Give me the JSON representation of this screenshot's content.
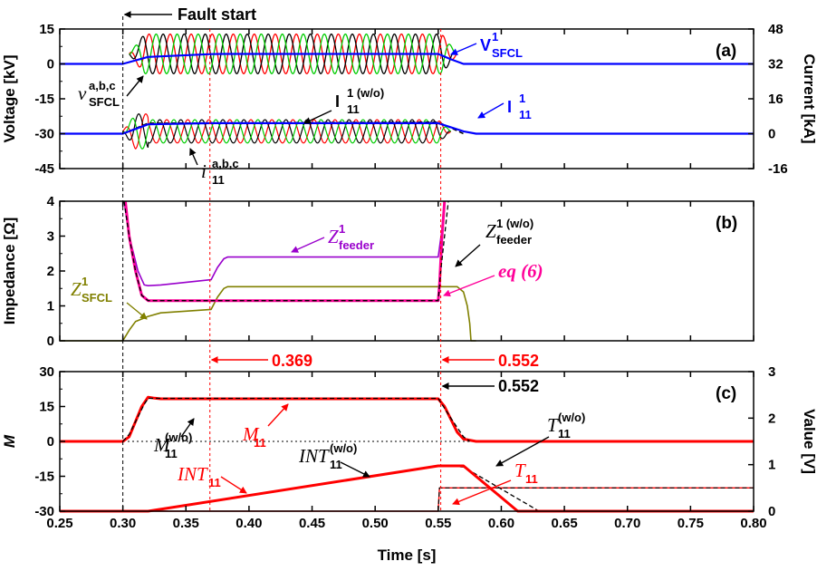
{
  "chart_data": [
    {
      "panel": "a",
      "type": "line",
      "label": "(a)",
      "ylabel_left": "Voltage [kV]",
      "ylabel_right": "Current [kA]",
      "xlim": [
        0.25,
        0.8
      ],
      "ylim_left": [
        -45,
        15
      ],
      "yticks_left": [
        "15",
        "0",
        "-15",
        "-30",
        "-45"
      ],
      "ylim_right": [
        -16,
        48
      ],
      "yticks_right": [
        "48",
        "32",
        "16",
        "0",
        "-16"
      ],
      "series": [
        {
          "name": "V1 SFCL",
          "color": "#0000ff",
          "x": [
            0.25,
            0.3,
            0.32,
            0.37,
            0.38,
            0.55,
            0.56,
            0.57,
            0.8
          ],
          "y": [
            0,
            0,
            3,
            4.2,
            4.3,
            4.3,
            2,
            0,
            0
          ]
        },
        {
          "name": "v a,b,c SFCL",
          "colors": [
            "#ff0000",
            "#000000",
            "#00cc00"
          ],
          "amplitude_kV": 8.5,
          "frequency_hz": 60,
          "t_start": 0.305,
          "t_end": 0.565
        },
        {
          "name": "I1 11",
          "color": "#0000ff",
          "x": [
            0.25,
            0.3,
            0.32,
            0.37,
            0.55,
            0.57,
            0.58,
            0.8
          ],
          "y": [
            -30,
            -30,
            -26,
            -25.5,
            -25.5,
            -29,
            -30,
            -30
          ]
        },
        {
          "name": "I1(w/o) 11",
          "color": "#000000",
          "dashed": true,
          "x": [
            0.3,
            0.32,
            0.55,
            0.57
          ],
          "y": [
            -30,
            -25.5,
            -25,
            -30
          ]
        },
        {
          "name": "i a,b,c 11",
          "colors": [
            "#ff0000",
            "#000000",
            "#00cc00"
          ],
          "center_kV": -30,
          "amplitude_kV": 5,
          "frequency_hz": 60,
          "t_start": 0.3,
          "t_end": 0.56
        }
      ],
      "annotations": [
        {
          "id": "fault",
          "text": "Fault start"
        },
        {
          "id": "v_sfcl",
          "main": "V",
          "sup": "1",
          "sub": "SFCL",
          "color": "#0000ff"
        },
        {
          "id": "v_abc",
          "main": "v",
          "sup": "a,b,c",
          "sub": "SFCL",
          "color": "#000000"
        },
        {
          "id": "i11",
          "main": "I",
          "sup": "1",
          "sub": "11",
          "color": "#0000ff"
        },
        {
          "id": "i11wo",
          "main": "I",
          "sup": "1 (w/o)",
          "sub": "11",
          "color": "#000000"
        },
        {
          "id": "i_abc",
          "main": "i",
          "sup": "a,b,c",
          "sub": "11",
          "color": "#000000"
        }
      ]
    },
    {
      "panel": "b",
      "type": "line",
      "label": "(b)",
      "ylabel": "Impedance [Ω]",
      "xlim": [
        0.25,
        0.8
      ],
      "ylim": [
        0,
        4
      ],
      "yticks": [
        "0",
        "1",
        "2",
        "3",
        "4"
      ],
      "series": [
        {
          "name": "Z1 feeder",
          "color": "#9900cc",
          "x": [
            0.301,
            0.305,
            0.312,
            0.317,
            0.32,
            0.33,
            0.37,
            0.375,
            0.38,
            0.383,
            0.55,
            0.553,
            0.555
          ],
          "y": [
            4.0,
            3.0,
            2.0,
            1.6,
            1.58,
            1.6,
            1.75,
            2.1,
            2.35,
            2.4,
            2.4,
            3.2,
            4.0
          ]
        },
        {
          "name": "Z1(w/o) feeder",
          "color": "#000000",
          "dashed": true,
          "x": [
            0.301,
            0.305,
            0.31,
            0.315,
            0.32,
            0.55,
            0.552,
            0.555,
            0.558
          ],
          "y": [
            4.0,
            3.0,
            2.0,
            1.3,
            1.15,
            1.15,
            2.0,
            3.0,
            4.0
          ]
        },
        {
          "name": "eq (6)",
          "color": "#ff0099",
          "x": [
            0.302,
            0.305,
            0.31,
            0.315,
            0.32,
            0.55,
            0.551,
            0.553,
            0.555
          ],
          "y": [
            4.0,
            3.0,
            2.0,
            1.3,
            1.15,
            1.15,
            1.6,
            3.0,
            4.0
          ]
        },
        {
          "name": "Z1 SFCL",
          "color": "#808000",
          "x": [
            0.25,
            0.3,
            0.305,
            0.31,
            0.32,
            0.33,
            0.37,
            0.375,
            0.38,
            0.383,
            0.55,
            0.56,
            0.565,
            0.57,
            0.573,
            0.575,
            0.576,
            0.58
          ],
          "y": [
            0,
            0,
            0.3,
            0.55,
            0.7,
            0.8,
            0.9,
            1.25,
            1.5,
            1.55,
            1.55,
            1.55,
            1.55,
            1.4,
            1.0,
            0.5,
            0,
            0
          ]
        }
      ],
      "annotations": [
        {
          "id": "zfeeder",
          "main": "Z",
          "sup": "1",
          "sub": "feeder",
          "color": "#9900cc"
        },
        {
          "id": "zfeederwo",
          "main": "Z",
          "sup": "1 (w/o)",
          "sub": "feeder",
          "color": "#000000"
        },
        {
          "id": "eq6",
          "text": "eq (6)",
          "color": "#ff0099"
        },
        {
          "id": "zsfcl",
          "main": "Z",
          "sup": "1",
          "sub": "SFCL",
          "color": "#808000"
        }
      ]
    },
    {
      "panel": "c",
      "type": "line",
      "label": "(c)",
      "ylabel_left": "M",
      "ylabel_right": "Value [V]",
      "xlabel": "Time [s]",
      "xlim": [
        0.25,
        0.8
      ],
      "xticks": [
        "0.25",
        "0.30",
        "0.35",
        "0.40",
        "0.45",
        "0.50",
        "0.55",
        "0.60",
        "0.65",
        "0.70",
        "0.75",
        "0.80"
      ],
      "ylim_left": [
        -30,
        30
      ],
      "yticks_left": [
        "30",
        "15",
        "0",
        "-15",
        "-30"
      ],
      "ylim_right": [
        0,
        3
      ],
      "yticks_right": [
        "3",
        "2",
        "1",
        "0"
      ],
      "series": [
        {
          "name": "M11",
          "color": "#ff0000",
          "x": [
            0.25,
            0.3,
            0.305,
            0.315,
            0.32,
            0.325,
            0.33,
            0.55,
            0.555,
            0.565,
            0.57,
            0.58,
            0.8
          ],
          "y": [
            0,
            0,
            2,
            15,
            19,
            18.6,
            18.3,
            18.3,
            15,
            4,
            1,
            0,
            0
          ]
        },
        {
          "name": "M(w/o) 11",
          "color": "#000000",
          "dashed": true,
          "x": [
            0.3,
            0.305,
            0.317,
            0.32,
            0.55,
            0.56,
            0.57,
            0.575
          ],
          "y": [
            0,
            3,
            16,
            18.5,
            18.5,
            10,
            2,
            0
          ]
        },
        {
          "name": "INT11",
          "color": "#ff0000",
          "x": [
            0.25,
            0.32,
            0.55,
            0.57,
            0.613,
            0.8
          ],
          "y": [
            -30,
            -30,
            -10.5,
            -10.5,
            -30,
            -30
          ]
        },
        {
          "name": "INT(w/o) 11",
          "color": "#000000",
          "dashed": true,
          "x": [
            0.55,
            0.57,
            0.63
          ],
          "y": [
            -10.5,
            -11,
            -30
          ]
        },
        {
          "name": "T11",
          "color": "#ff0000",
          "x": [
            0.25,
            0.55,
            0.551,
            0.8
          ],
          "y": [
            -30,
            -30,
            -20,
            -20
          ]
        },
        {
          "name": "T(w/o) 11",
          "color": "#000000",
          "dashed": true,
          "x": [
            0.55,
            0.551,
            0.8
          ],
          "y": [
            -30,
            -20,
            -20
          ]
        }
      ],
      "annotations": [
        {
          "id": "n369",
          "text": "0.369",
          "color": "#ff0000"
        },
        {
          "id": "n552r",
          "text": "0.552",
          "color": "#ff0000"
        },
        {
          "id": "n552k",
          "text": "0.552",
          "color": "#000000"
        },
        {
          "id": "m11wo",
          "main": "M",
          "sup": "(w/o)",
          "sub": "11",
          "color": "#000000"
        },
        {
          "id": "m11",
          "main": "M",
          "sub": "11",
          "color": "#ff0000"
        },
        {
          "id": "int11",
          "main": "INT",
          "sub": "11",
          "color": "#ff0000"
        },
        {
          "id": "int11wo",
          "main": "INT",
          "sup": "(w/o)",
          "sub": "11",
          "color": "#000000"
        },
        {
          "id": "t11wo",
          "main": "T",
          "sup": "(w/o)",
          "sub": "11",
          "color": "#000000"
        },
        {
          "id": "t11",
          "main": "T",
          "sub": "11",
          "color": "#ff0000"
        }
      ]
    }
  ],
  "markers": {
    "fault_time": 0.3,
    "t_369": 0.369,
    "t_552": 0.552
  }
}
